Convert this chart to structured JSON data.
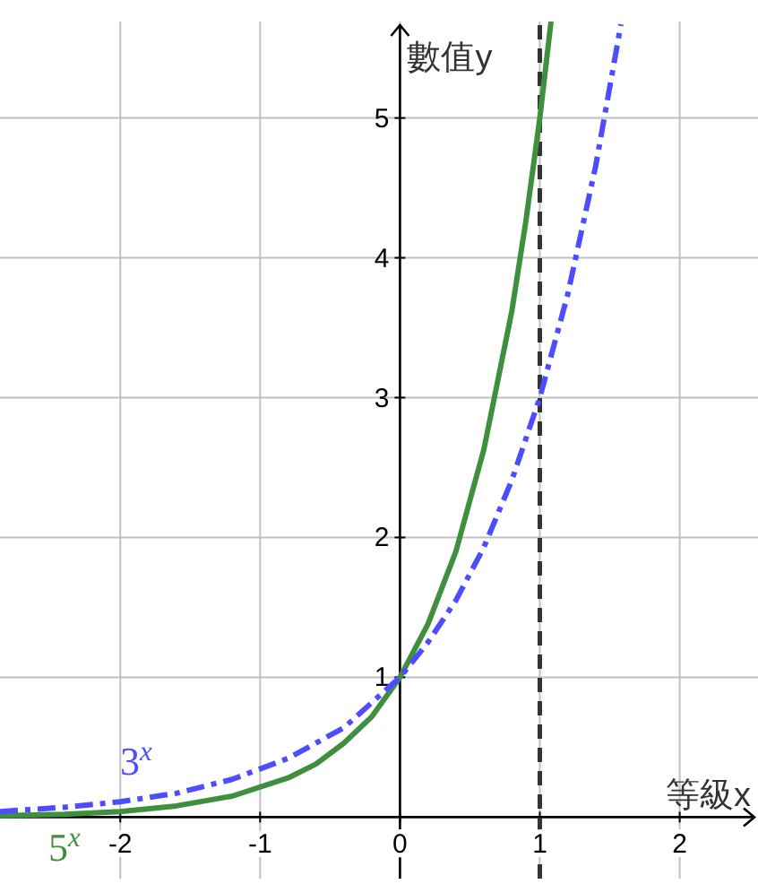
{
  "chart_data": {
    "type": "line",
    "xlabel": "等級x",
    "ylabel": "數值y",
    "xlim": [
      -2.86,
      2.56
    ],
    "ylim": [
      -0.44,
      5.69
    ],
    "xticks": [
      -2,
      -1,
      0,
      1,
      2
    ],
    "yticks": [
      1,
      2,
      3,
      4,
      5
    ],
    "grid": true,
    "marker": "none",
    "series": [
      {
        "color": "#3f8f3f",
        "line_style": "solid",
        "x": [
          -2.86,
          -2.4,
          -2.0,
          -1.6,
          -1.2,
          -0.8,
          -0.6,
          -0.4,
          -0.2,
          0,
          0.2,
          0.4,
          0.6,
          0.8,
          0.9,
          1.0,
          1.08
        ],
        "values": [
          0.01,
          0.02,
          0.04,
          0.08,
          0.15,
          0.28,
          0.38,
          0.53,
          0.72,
          1,
          1.38,
          1.9,
          2.63,
          3.62,
          4.26,
          5,
          5.69
        ]
      },
      {
        "color": "#4d4dff",
        "line_style": "dashdot",
        "x": [
          -2.86,
          -2.4,
          -2.0,
          -1.6,
          -1.2,
          -0.8,
          -0.4,
          0,
          0.2,
          0.4,
          0.6,
          0.8,
          1.0,
          1.2,
          1.4,
          1.58
        ],
        "values": [
          0.04,
          0.07,
          0.11,
          0.17,
          0.27,
          0.42,
          0.64,
          1,
          1.25,
          1.55,
          1.93,
          2.41,
          3,
          3.74,
          4.66,
          5.67
        ]
      }
    ],
    "ref_lines": [
      {
        "axis": "x",
        "value": 1,
        "color": "#333333",
        "line_style": "dashed"
      }
    ],
    "annotations": [
      "5$^{x}$",
      "3$^{x}$"
    ]
  }
}
